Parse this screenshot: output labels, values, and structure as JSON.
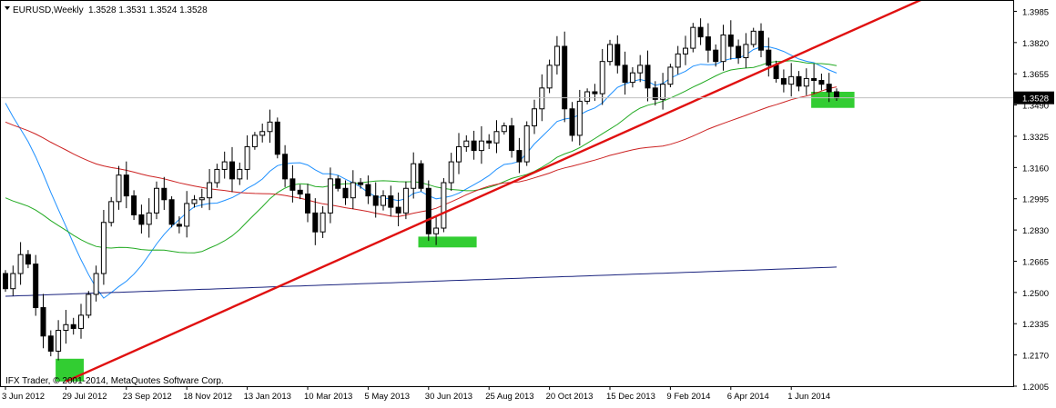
{
  "header": {
    "symbol": "EURUSD,Weekly",
    "ohlc": "1.3528 1.3531 1.3524 1.3528",
    "menu_icon": "triangle-down-icon"
  },
  "footer": {
    "copyright": "IFX Trader, © 2001-2014, MetaQuotes Software Corp."
  },
  "current_price": "1.3528",
  "colors": {
    "background": "#ffffff",
    "frame": "#000000",
    "candle": "#000000",
    "ma_fast": "#1e90ff",
    "ma_mid": "#22aa22",
    "ma_slow": "#cc2222",
    "ma_long": "#1a237e",
    "trendline": "#e01010",
    "highlight": "#32cd32",
    "price_line": "#c0c0c0",
    "price_label_bg": "#000000",
    "price_label_text": "#ffffff"
  },
  "chart_data": {
    "type": "candlestick",
    "symbol": "EURUSD",
    "timeframe": "Weekly",
    "y_ticks": [
      "1.3985",
      "1.3820",
      "1.3655",
      "1.3490",
      "1.3325",
      "1.3160",
      "1.2995",
      "1.2830",
      "1.2665",
      "1.2500",
      "1.2335",
      "1.2170",
      "1.2005"
    ],
    "y_range": [
      1.2005,
      1.404
    ],
    "x_labels": [
      "3 Jun 2012",
      "29 Jul 2012",
      "23 Sep 2012",
      "18 Nov 2012",
      "13 Jan 2013",
      "10 Mar 2013",
      "5 May 2013",
      "30 Jun 2013",
      "25 Aug 2013",
      "20 Oct 2013",
      "15 Dec 2013",
      "9 Feb 2014",
      "6 Apr 2014",
      "1 Jun 2014"
    ],
    "x_label_weeks": [
      0,
      8,
      16,
      24,
      32,
      40,
      48,
      56,
      64,
      72,
      80,
      88,
      96,
      104
    ],
    "total_weeks": 113,
    "closes": [
      1.252,
      1.26,
      1.27,
      1.265,
      1.242,
      1.227,
      1.219,
      1.23,
      1.233,
      1.231,
      1.238,
      1.249,
      1.26,
      1.287,
      1.298,
      1.312,
      1.301,
      1.291,
      1.286,
      1.292,
      1.305,
      1.299,
      1.286,
      1.285,
      1.297,
      1.299,
      1.3,
      1.308,
      1.315,
      1.319,
      1.31,
      1.315,
      1.327,
      1.333,
      1.335,
      1.34,
      1.323,
      1.31,
      1.304,
      1.302,
      1.292,
      1.282,
      1.292,
      1.31,
      1.305,
      1.3,
      1.308,
      1.307,
      1.301,
      1.296,
      1.301,
      1.295,
      1.292,
      1.305,
      1.318,
      1.305,
      1.281,
      1.284,
      1.308,
      1.319,
      1.327,
      1.33,
      1.325,
      1.33,
      1.329,
      1.335,
      1.338,
      1.325,
      1.319,
      1.338,
      1.347,
      1.358,
      1.37,
      1.38,
      1.347,
      1.333,
      1.351,
      1.356,
      1.355,
      1.372,
      1.381,
      1.37,
      1.361,
      1.366,
      1.37,
      1.358,
      1.352,
      1.36,
      1.369,
      1.376,
      1.379,
      1.39,
      1.385,
      1.378,
      1.372,
      1.386,
      1.38,
      1.374,
      1.381,
      1.388,
      1.378,
      1.37,
      1.363,
      1.36,
      1.364,
      1.359,
      1.363,
      1.362,
      1.36,
      1.356,
      1.3528
    ],
    "indicators": [
      {
        "type": "moving_average",
        "color": "#1e90ff"
      },
      {
        "type": "moving_average",
        "color": "#22aa22"
      },
      {
        "type": "moving_average",
        "color": "#cc2222"
      },
      {
        "type": "moving_average",
        "color": "#1a237e"
      }
    ],
    "trendline": {
      "from_week": 8,
      "from_price": 1.203,
      "to_week": 113,
      "to_price": 1.39,
      "color": "#e01010"
    },
    "highlight_zones": [
      {
        "week_start": 7,
        "week_end": 10,
        "price_top": 1.215,
        "price_bottom": 1.203
      },
      {
        "week_start": 55,
        "week_end": 62,
        "price_top": 1.2795,
        "price_bottom": 1.2738
      },
      {
        "week_start": 107,
        "week_end": 112,
        "price_top": 1.356,
        "price_bottom": 1.3475
      }
    ],
    "price_line": 1.3528,
    "grid": false,
    "legend": "none"
  }
}
